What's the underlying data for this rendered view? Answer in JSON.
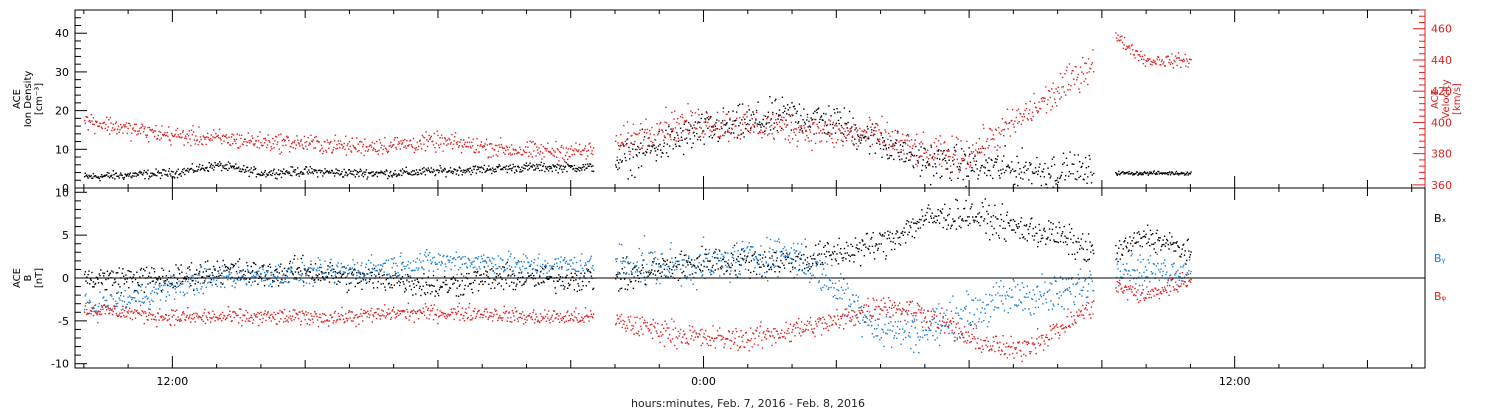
{
  "chart_data": {
    "type": "scatter",
    "xlabel": "hours:minutes, Feb.  7, 2016 - Feb.  8, 2016",
    "x_tick_labels": [
      {
        "t": 12,
        "label": "12:00"
      },
      {
        "t": 24,
        "label": "0:00"
      },
      {
        "t": 36,
        "label": "12:00"
      }
    ],
    "xlim": [
      9.8,
      40.3
    ],
    "panels": [
      {
        "id": "plasma",
        "left_label": [
          "ACE",
          "Ion Density",
          "[cm⁻³]"
        ],
        "right_label": [
          "ACE",
          "Velocity",
          "[km/s]"
        ],
        "ylim_left": [
          0,
          46
        ],
        "yticks_left": [
          0,
          10,
          20,
          30,
          40
        ],
        "ylim_right": [
          358,
          472
        ],
        "yticks_right": [
          360,
          380,
          400,
          420,
          440,
          460
        ],
        "right_axis_color": "#dd2222",
        "series": [
          {
            "key": "density",
            "axis": "left",
            "color": "#000000",
            "segments": [
              {
                "x": [
                  10.0,
                  11.0,
                  12.0,
                  13.0,
                  14.0,
                  15.0,
                  16.0,
                  17.0,
                  18.0,
                  19.0,
                  20.0,
                  21.5
                ],
                "y": [
                  3,
                  3.5,
                  4,
                  6,
                  4,
                  4.5,
                  4,
                  4,
                  4.5,
                  5,
                  5.5,
                  5.5
                ],
                "noise": 1.0
              },
              {
                "x": [
                  22.0,
                  23.0,
                  24.0,
                  25.0,
                  26.0,
                  27.0,
                  28.0,
                  29.0,
                  30.0,
                  31.0,
                  32.0,
                  32.8
                ],
                "y": [
                  7,
                  11,
                  15,
                  17,
                  19,
                  17,
                  12,
                  7,
                  6,
                  5,
                  4.5,
                  4
                ],
                "noise": 4.0
              },
              {
                "x": [
                  33.3,
                  34.0,
                  35.0
                ],
                "y": [
                  4,
                  4,
                  4
                ],
                "noise": 0.4
              }
            ]
          },
          {
            "key": "velocity",
            "axis": "right",
            "color": "#dd2222",
            "segments": [
              {
                "x": [
                  10.0,
                  11.0,
                  12.0,
                  13.0,
                  14.0,
                  15.0,
                  16.0,
                  17.0,
                  18.0,
                  19.0,
                  20.0,
                  21.5
                ],
                "y": [
                  402,
                  396,
                  392,
                  390,
                  388,
                  387,
                  385,
                  386,
                  388,
                  385,
                  382,
                  382
                ],
                "noise": 5.0
              },
              {
                "x": [
                  22.0,
                  23.0,
                  24.0,
                  25.0,
                  26.0,
                  27.0,
                  28.0,
                  29.0,
                  30.0,
                  31.0,
                  32.0,
                  32.8
                ],
                "y": [
                  385,
                  398,
                  400,
                  398,
                  397,
                  393,
                  392,
                  380,
                  380,
                  400,
                  420,
                  440
                ],
                "noise": 9.0
              },
              {
                "x": [
                  33.3,
                  34.0,
                  35.0
                ],
                "y": [
                  455,
                  440,
                  440
                ],
                "noise": 3.5
              }
            ]
          }
        ]
      },
      {
        "id": "imf",
        "left_label": [
          "ACE",
          "B",
          "[nT]"
        ],
        "ylim_left": [
          -10.5,
          10.5
        ],
        "yticks_left": [
          -10,
          -5,
          0,
          5,
          10
        ],
        "zero_line": true,
        "legend_position": "right",
        "series": [
          {
            "key": "bx",
            "name": "Bₓ",
            "axis": "left",
            "color": "#000000",
            "segments": [
              {
                "x": [
                  10.0,
                  11.0,
                  12.0,
                  13.0,
                  14.0,
                  15.0,
                  16.0,
                  17.0,
                  18.0,
                  19.0,
                  20.0,
                  21.5
                ],
                "y": [
                  0,
                  0,
                  0,
                  1,
                  0.5,
                  1,
                  0,
                  0,
                  -1,
                  0,
                  0,
                  0
                ],
                "noise": 1.3
              },
              {
                "x": [
                  22.0,
                  23.0,
                  24.0,
                  25.0,
                  26.0,
                  27.0,
                  28.0,
                  29.0,
                  30.0,
                  31.0,
                  32.0,
                  32.8
                ],
                "y": [
                  0,
                  1,
                  2,
                  2,
                  2,
                  3,
                  4,
                  7,
                  7.5,
                  6,
                  5,
                  3
                ],
                "noise": 1.5
              },
              {
                "x": [
                  33.3,
                  34.0,
                  35.0
                ],
                "y": [
                  3,
                  5,
                  3
                ],
                "noise": 1.2
              }
            ]
          },
          {
            "key": "by",
            "name": "Bᵧ",
            "axis": "left",
            "color": "#1a7fd1",
            "segments": [
              {
                "x": [
                  10.0,
                  11.0,
                  12.0,
                  13.0,
                  14.0,
                  15.0,
                  16.0,
                  17.0,
                  18.0,
                  19.0,
                  20.0,
                  21.5
                ],
                "y": [
                  -3.5,
                  -2.5,
                  -1,
                  0,
                  0.5,
                  0.5,
                  1,
                  1.5,
                  2,
                  2,
                  1.5,
                  1.5
                ],
                "noise": 1.2
              },
              {
                "x": [
                  22.0,
                  23.0,
                  24.0,
                  25.0,
                  26.0,
                  27.0,
                  28.0,
                  29.0,
                  30.0,
                  31.0,
                  32.0,
                  32.8
                ],
                "y": [
                  2,
                  1.5,
                  1.5,
                  2.5,
                  3,
                  -1,
                  -6,
                  -6,
                  -4,
                  -2,
                  -2,
                  0
                ],
                "noise": 2.0
              },
              {
                "x": [
                  33.3,
                  34.0,
                  35.0
                ],
                "y": [
                  1.5,
                  1,
                  1
                ],
                "noise": 1.5
              }
            ]
          },
          {
            "key": "bz",
            "name": "Bᵩ",
            "axis": "left",
            "color": "#dd2222",
            "segments": [
              {
                "x": [
                  10.0,
                  11.0,
                  12.0,
                  13.0,
                  14.0,
                  15.0,
                  16.0,
                  17.0,
                  18.0,
                  19.0,
                  20.0,
                  21.5
                ],
                "y": [
                  -3.5,
                  -4,
                  -4.5,
                  -4.5,
                  -4.5,
                  -4.5,
                  -4.5,
                  -4,
                  -4,
                  -4,
                  -4.5,
                  -4.5
                ],
                "noise": 0.8
              },
              {
                "x": [
                  22.0,
                  23.0,
                  24.0,
                  25.0,
                  26.0,
                  27.0,
                  28.0,
                  29.0,
                  30.0,
                  31.0,
                  32.0,
                  32.8
                ],
                "y": [
                  -5,
                  -6,
                  -7,
                  -7,
                  -6,
                  -5,
                  -3,
                  -4,
                  -7,
                  -8.5,
                  -6,
                  -3
                ],
                "noise": 1.2
              },
              {
                "x": [
                  33.3,
                  34.0,
                  35.0
                ],
                "y": [
                  -1,
                  -2,
                  0
                ],
                "noise": 1.0
              }
            ]
          }
        ]
      }
    ]
  }
}
